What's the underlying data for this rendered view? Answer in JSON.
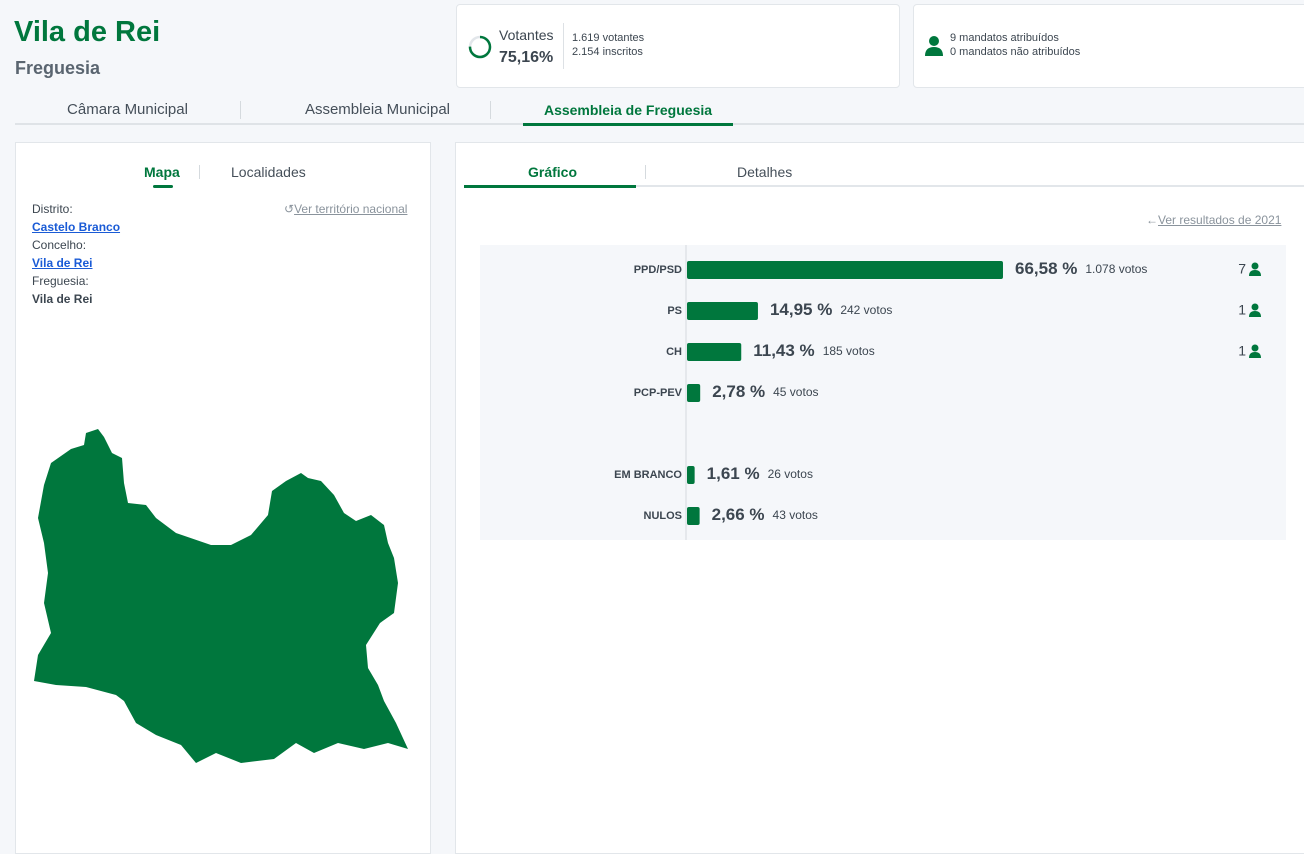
{
  "header": {
    "title": "Vila de Rei",
    "subtitle": "Freguesia"
  },
  "turnout": {
    "label": "Votantes",
    "value": 75.16,
    "value_label": "75,16%",
    "voters": "1.619 votantes",
    "registered": "2.154 inscritos"
  },
  "mandates": {
    "assigned": "9 mandatos atribuídos",
    "unassigned": "0 mandatos não atribuídos"
  },
  "tabs": [
    "Câmara Municipal",
    "Assembleia Municipal",
    "Assembleia de Freguesia"
  ],
  "left_panel": {
    "tabs": [
      "Mapa",
      "Localidades"
    ],
    "back_link": "Ver território nacional",
    "fields": [
      {
        "label": "Distrito:",
        "value": "Castelo Branco"
      },
      {
        "label": "Concelho:",
        "value": "Vila de Rei"
      },
      {
        "label": "Freguesia:",
        "value": "Vila de Rei"
      }
    ]
  },
  "right_panel": {
    "tabs": [
      "Gráfico",
      "Detalhes"
    ],
    "back_link": "Ver resultados de 2021"
  },
  "chart_data": {
    "type": "bar",
    "orientation": "horizontal",
    "color": "#00773d",
    "categories": [
      "PPD/PSD",
      "PS",
      "CH",
      "PCP-PEV"
    ],
    "values": [
      66.58,
      14.95,
      11.43,
      2.78
    ],
    "value_labels": [
      "66,58 %",
      "14,95 %",
      "11,43 %",
      "2,78 %"
    ],
    "votes": [
      "1.078 votos",
      "242 votos",
      "185 votos",
      "45 votos"
    ],
    "mandates": [
      7,
      1,
      1,
      null
    ],
    "blank_null": {
      "categories": [
        "EM BRANCO",
        "NULOS"
      ],
      "values": [
        1.61,
        2.66
      ],
      "value_labels": [
        "1,61 %",
        "2,66 %"
      ],
      "votes": [
        "26 votos",
        "43 votos"
      ]
    }
  }
}
